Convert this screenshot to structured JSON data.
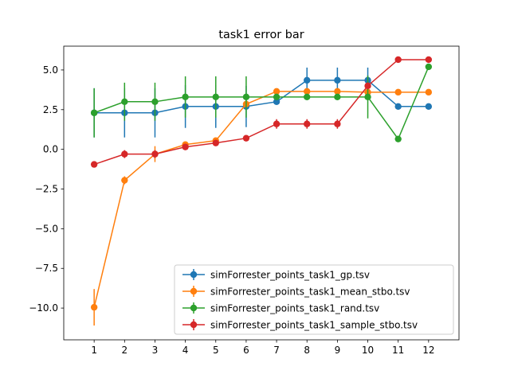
{
  "chart_data": {
    "type": "line",
    "title": "task1 error bar",
    "xlabel": "",
    "ylabel": "",
    "x": [
      1,
      2,
      3,
      4,
      5,
      6,
      7,
      8,
      9,
      10,
      11,
      12
    ],
    "x_ticks": [
      "1",
      "2",
      "3",
      "4",
      "5",
      "6",
      "7",
      "8",
      "9",
      "10",
      "11",
      "12"
    ],
    "xlim": [
      0,
      13
    ],
    "ylim": [
      -12,
      6.5
    ],
    "y_ticks": [
      5.0,
      2.5,
      0.0,
      -2.5,
      -5.0,
      -7.5,
      -10.0
    ],
    "y_tick_labels": [
      "5.0",
      "2.5",
      "0.0",
      "−2.5",
      "−5.0",
      "−7.5",
      "−10.0"
    ],
    "grid": false,
    "legend_position": "lower-right",
    "series": [
      {
        "name": "simForrester_points_task1_gp.tsv",
        "color": "#1f77b4",
        "values": [
          2.3,
          2.3,
          2.3,
          2.7,
          2.7,
          2.7,
          3.0,
          4.35,
          4.35,
          4.35,
          2.7,
          2.7
        ],
        "errors": [
          1.55,
          1.55,
          1.55,
          1.35,
          1.35,
          1.3,
          0.0,
          0.8,
          0.8,
          0.8,
          0.0,
          0.0
        ]
      },
      {
        "name": "simForrester_points_task1_mean_stbo.tsv",
        "color": "#ff7f0e",
        "values": [
          -9.95,
          -1.95,
          -0.3,
          0.3,
          0.55,
          2.85,
          3.65,
          3.65,
          3.65,
          3.6,
          3.6,
          3.6
        ],
        "errors": [
          1.15,
          0.25,
          0.5,
          0.15,
          0.15,
          0.1,
          0.0,
          0.0,
          0.0,
          0.0,
          0.0,
          0.0
        ]
      },
      {
        "name": "simForrester_points_task1_rand.tsv",
        "color": "#2ca02c",
        "values": [
          2.3,
          3.0,
          3.0,
          3.3,
          3.3,
          3.3,
          3.3,
          3.3,
          3.3,
          3.3,
          0.65,
          5.2
        ],
        "errors": [
          1.55,
          1.2,
          1.2,
          1.3,
          1.3,
          1.3,
          0.0,
          0.0,
          0.0,
          1.35,
          0.0,
          0.0
        ]
      },
      {
        "name": "simForrester_points_task1_sample_stbo.tsv",
        "color": "#d62728",
        "values": [
          -0.95,
          -0.3,
          -0.3,
          0.15,
          0.4,
          0.7,
          1.6,
          1.6,
          1.6,
          4.0,
          5.65,
          5.65
        ],
        "errors": [
          0.0,
          0.25,
          0.25,
          0.1,
          0.1,
          0.05,
          0.3,
          0.3,
          0.3,
          0.2,
          0.0,
          0.0
        ]
      }
    ]
  }
}
